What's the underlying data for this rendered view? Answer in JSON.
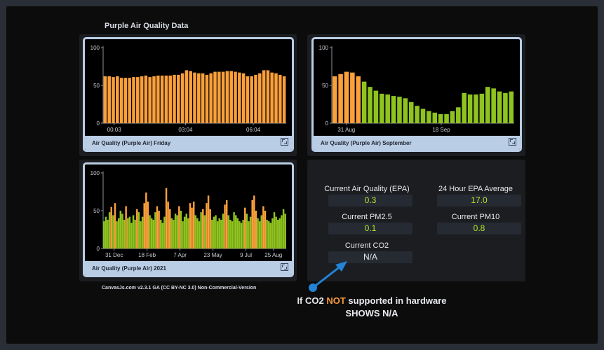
{
  "page": {
    "title": "Purple Air Quality Data"
  },
  "colors": {
    "orange": "#fba03a",
    "green": "#8fc31f",
    "frame": "#b9cde4",
    "accent": "#2383d6"
  },
  "charts": {
    "friday": {
      "caption": "Air Quality (Purple Air) Friday",
      "expand_icon": "expand-icon"
    },
    "september": {
      "caption": "Air Quality (Purple Air) September",
      "expand_icon": "expand-icon"
    },
    "year": {
      "caption": "Air Quality (Purple Air) 2021",
      "expand_icon": "expand-icon"
    }
  },
  "chart_data": [
    {
      "type": "bar",
      "ylim": [
        0,
        100
      ],
      "y_ticks": [
        "0",
        "50",
        "100"
      ],
      "x_ticks": [
        "00:03",
        "03:04",
        "06:04"
      ],
      "color": "#fba03a",
      "values": [
        62,
        62,
        61,
        62,
        60,
        60,
        60,
        61,
        61,
        62,
        63,
        61,
        62,
        63,
        63,
        63,
        63,
        64,
        64,
        66,
        70,
        69,
        67,
        66,
        66,
        64,
        66,
        68,
        68,
        68,
        69,
        69,
        68,
        67,
        66,
        62,
        62,
        64,
        66,
        70,
        70,
        67,
        66,
        64,
        62
      ]
    },
    {
      "type": "bar",
      "ylim": [
        0,
        100
      ],
      "y_ticks": [
        "0",
        "50",
        "100"
      ],
      "x_ticks": [
        "31 Aug",
        "18 Sep"
      ],
      "values": [
        62,
        65,
        68,
        67,
        62,
        55,
        48,
        43,
        39,
        38,
        36,
        35,
        33,
        28,
        23,
        19,
        16,
        14,
        12,
        12,
        16,
        21,
        40,
        38,
        38,
        39,
        48,
        46,
        42,
        40,
        42
      ],
      "colors": [
        "#fba03a",
        "#fba03a",
        "#fba03a",
        "#fba03a",
        "#fba03a",
        "#8fc31f",
        "#8fc31f",
        "#8fc31f",
        "#8fc31f",
        "#8fc31f",
        "#8fc31f",
        "#8fc31f",
        "#8fc31f",
        "#8fc31f",
        "#8fc31f",
        "#8fc31f",
        "#8fc31f",
        "#8fc31f",
        "#8fc31f",
        "#8fc31f",
        "#8fc31f",
        "#8fc31f",
        "#8fc31f",
        "#8fc31f",
        "#8fc31f",
        "#8fc31f",
        "#8fc31f",
        "#8fc31f",
        "#8fc31f",
        "#8fc31f",
        "#8fc31f"
      ]
    },
    {
      "type": "bar",
      "ylim": [
        0,
        100
      ],
      "y_ticks": [
        "0",
        "50",
        "100"
      ],
      "x_ticks": [
        "31 Dec",
        "18 Feb",
        "7 Apr",
        "23 May",
        "9 Jul",
        "25 Aug"
      ],
      "values": [
        36,
        42,
        38,
        48,
        55,
        44,
        60,
        36,
        40,
        50,
        46,
        38,
        56,
        40,
        42,
        34,
        44,
        38,
        52,
        48,
        36,
        42,
        60,
        74,
        62,
        44,
        40,
        38,
        48,
        56,
        50,
        38,
        34,
        42,
        80,
        62,
        52,
        40,
        38,
        46,
        44,
        56,
        50,
        36,
        42,
        46,
        40,
        60,
        54,
        62,
        44,
        40,
        36,
        48,
        52,
        44,
        60,
        70,
        52,
        38,
        42,
        44,
        36,
        40,
        38,
        46,
        58,
        64,
        44,
        38,
        36,
        48,
        44,
        40,
        36,
        34,
        38,
        54,
        46,
        36,
        42,
        64,
        70,
        50,
        40,
        36,
        44,
        56,
        50,
        38,
        36,
        34,
        40,
        48,
        42,
        38,
        40,
        44,
        52,
        46
      ],
      "colors": [
        "#8fc31f",
        "#8fc31f",
        "#8fc31f",
        "#8fc31f",
        "#fba03a",
        "#8fc31f",
        "#fba03a",
        "#8fc31f",
        "#8fc31f",
        "#8fc31f",
        "#8fc31f",
        "#8fc31f",
        "#fba03a",
        "#8fc31f",
        "#8fc31f",
        "#8fc31f",
        "#8fc31f",
        "#8fc31f",
        "#fba03a",
        "#8fc31f",
        "#8fc31f",
        "#8fc31f",
        "#fba03a",
        "#fba03a",
        "#fba03a",
        "#8fc31f",
        "#8fc31f",
        "#8fc31f",
        "#8fc31f",
        "#fba03a",
        "#fba03a",
        "#8fc31f",
        "#8fc31f",
        "#8fc31f",
        "#fba03a",
        "#fba03a",
        "#fba03a",
        "#8fc31f",
        "#8fc31f",
        "#8fc31f",
        "#8fc31f",
        "#fba03a",
        "#8fc31f",
        "#8fc31f",
        "#8fc31f",
        "#8fc31f",
        "#8fc31f",
        "#fba03a",
        "#fba03a",
        "#fba03a",
        "#8fc31f",
        "#8fc31f",
        "#8fc31f",
        "#8fc31f",
        "#fba03a",
        "#8fc31f",
        "#fba03a",
        "#fba03a",
        "#fba03a",
        "#8fc31f",
        "#8fc31f",
        "#8fc31f",
        "#8fc31f",
        "#8fc31f",
        "#8fc31f",
        "#8fc31f",
        "#fba03a",
        "#fba03a",
        "#8fc31f",
        "#8fc31f",
        "#8fc31f",
        "#8fc31f",
        "#8fc31f",
        "#8fc31f",
        "#8fc31f",
        "#8fc31f",
        "#8fc31f",
        "#fba03a",
        "#8fc31f",
        "#8fc31f",
        "#8fc31f",
        "#fba03a",
        "#fba03a",
        "#fba03a",
        "#8fc31f",
        "#8fc31f",
        "#8fc31f",
        "#fba03a",
        "#fba03a",
        "#8fc31f",
        "#8fc31f",
        "#8fc31f",
        "#8fc31f",
        "#8fc31f",
        "#8fc31f",
        "#8fc31f",
        "#8fc31f",
        "#8fc31f",
        "#8fc31f",
        "#8fc31f"
      ]
    }
  ],
  "stats": {
    "current_epa": {
      "label": "Current Air Quality (EPA)",
      "value": "0.3"
    },
    "avg_epa": {
      "label": "24 Hour EPA Average",
      "value": "17.0"
    },
    "pm25": {
      "label": "Current PM2.5",
      "value": "0.1"
    },
    "pm10": {
      "label": "Current PM10",
      "value": "0.8"
    },
    "co2": {
      "label": "Current CO2",
      "value": "N/A"
    }
  },
  "credit": "CanvasJs.com v2.3.1 GA (CC BY-NC 3.0) Non-Commercial-Version",
  "note": {
    "line1_prefix": "If CO2 ",
    "line1_highlight": "NOT",
    "line1_suffix": " supported in hardware",
    "line2": "SHOWS N/A"
  }
}
